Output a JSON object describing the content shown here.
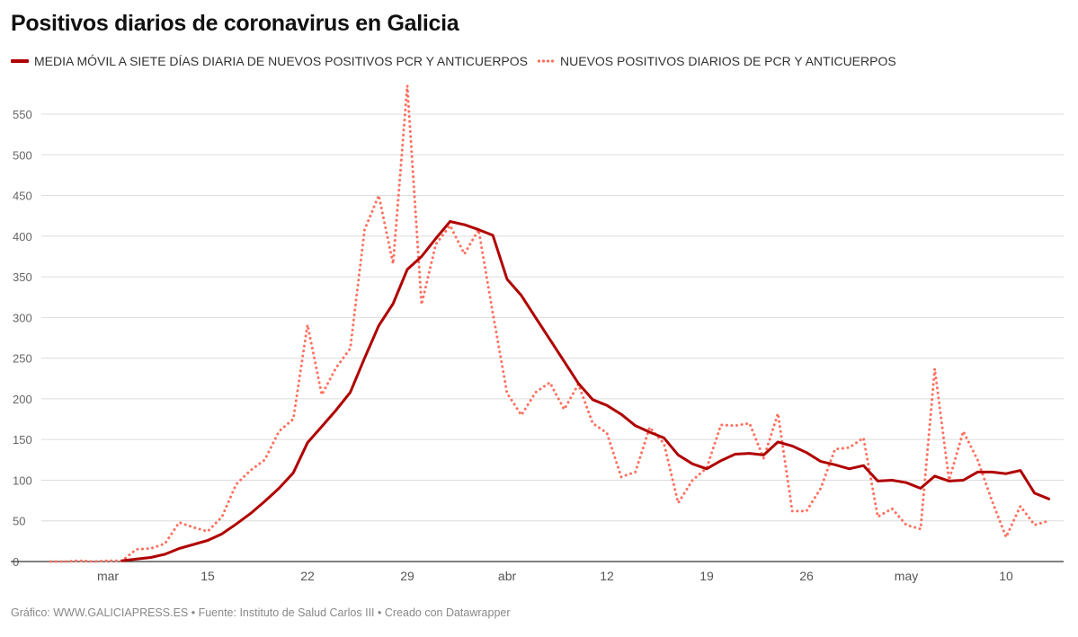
{
  "chart_data": {
    "type": "line",
    "title": "Positivos diarios de coronavirus en Galicia",
    "footer": "Gráfico: WWW.GALICIAPRESS.ES • Fuente: Instituto de Salud Carlos III • Creado con Datawrapper",
    "xlabel": "",
    "ylabel": "",
    "ylim": [
      0,
      580
    ],
    "yticks": [
      0,
      50,
      100,
      150,
      200,
      250,
      300,
      350,
      400,
      450,
      500,
      550
    ],
    "grid": true,
    "legend_position": "top-left",
    "x": [
      "4 mar",
      "5 mar",
      "6 mar",
      "7 mar",
      "8 mar",
      "9 mar",
      "10 mar",
      "11 mar",
      "12 mar",
      "13 mar",
      "14 mar",
      "15 mar",
      "16 mar",
      "17 mar",
      "18 mar",
      "19 mar",
      "20 mar",
      "21 mar",
      "22 mar",
      "23 mar",
      "24 mar",
      "25 mar",
      "26 mar",
      "27 mar",
      "28 mar",
      "29 mar",
      "30 mar",
      "31 mar",
      "1 abr",
      "2 abr",
      "3 abr",
      "4 abr",
      "5 abr",
      "6 abr",
      "7 abr",
      "8 abr",
      "9 abr",
      "10 abr",
      "11 abr",
      "12 abr",
      "13 abr",
      "14 abr",
      "15 abr",
      "16 abr",
      "17 abr",
      "18 abr",
      "19 abr",
      "20 abr",
      "21 abr",
      "22 abr",
      "23 abr",
      "24 abr",
      "25 abr",
      "26 abr",
      "27 abr",
      "28 abr",
      "29 abr",
      "30 abr",
      "1 may",
      "2 may",
      "3 may",
      "4 may",
      "5 may",
      "6 may",
      "7 may",
      "8 may",
      "9 may",
      "10 may",
      "11 may",
      "12 may",
      "13 may"
    ],
    "xticks": [
      {
        "x": "8 mar",
        "label": "mar"
      },
      {
        "x": "15 mar",
        "label": "15"
      },
      {
        "x": "22 mar",
        "label": "22"
      },
      {
        "x": "29 mar",
        "label": "29"
      },
      {
        "x": "5 abr",
        "label": "abr"
      },
      {
        "x": "12 abr",
        "label": "12"
      },
      {
        "x": "19 abr",
        "label": "19"
      },
      {
        "x": "26 abr",
        "label": "26"
      },
      {
        "x": "3 may",
        "label": "may"
      },
      {
        "x": "10 may",
        "label": "10"
      }
    ],
    "series": [
      {
        "name": "MEDIA MÓVIL A SIETE DÍAS DIARIA DE NUEVOS POSITIVOS PCR Y ANTICUERPOS",
        "color": "#b00000",
        "style": "solid",
        "values": [
          null,
          null,
          null,
          null,
          null,
          1,
          3,
          5,
          9,
          16,
          21,
          26,
          34,
          46,
          59,
          74,
          90,
          109,
          146,
          166,
          186,
          208,
          250,
          290,
          317,
          359,
          375,
          397,
          418,
          414,
          408,
          401,
          347,
          327,
          300,
          273,
          246,
          219,
          199,
          192,
          181,
          167,
          159,
          152,
          131,
          120,
          114,
          124,
          132,
          133,
          131,
          147,
          142,
          134,
          123,
          119,
          114,
          118,
          99,
          100,
          97,
          90,
          105,
          99,
          100,
          110,
          110,
          108,
          112,
          84,
          77
        ]
      },
      {
        "name": "NUEVOS POSITIVOS DIARIOS DE PCR Y ANTICUERPOS",
        "color": "#ff6f5e",
        "style": "dotted",
        "values": [
          0,
          0,
          1,
          0,
          1,
          1,
          15,
          16,
          22,
          48,
          42,
          37,
          55,
          95,
          112,
          125,
          160,
          175,
          291,
          205,
          238,
          262,
          408,
          450,
          366,
          585,
          316,
          390,
          413,
          378,
          408,
          305,
          207,
          180,
          208,
          220,
          187,
          218,
          170,
          158,
          104,
          110,
          165,
          145,
          72,
          100,
          115,
          168,
          167,
          170,
          127,
          182,
          62,
          62,
          90,
          138,
          140,
          152,
          55,
          65,
          45,
          40,
          237,
          100,
          160,
          125,
          75,
          30,
          68,
          45,
          50
        ]
      }
    ]
  }
}
